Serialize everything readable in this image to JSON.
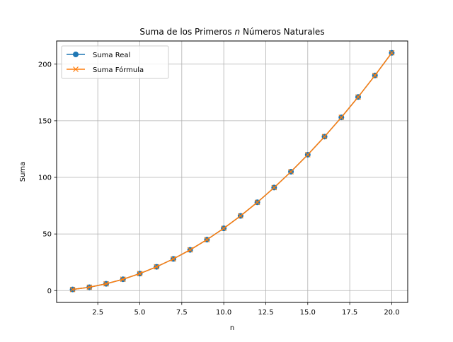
{
  "chart_data": {
    "type": "line",
    "title_parts": {
      "before": "Suma de los Primeros ",
      "var": "n",
      "after": " Números Naturales"
    },
    "xlabel": "n",
    "ylabel": "Suma",
    "xlim": [
      0.05,
      20.95
    ],
    "ylim": [
      -10.45,
      220.45
    ],
    "xticks": [
      2.5,
      5.0,
      7.5,
      10.0,
      12.5,
      15.0,
      17.5,
      20.0
    ],
    "xtick_labels": [
      "2.5",
      "5.0",
      "7.5",
      "10.0",
      "12.5",
      "15.0",
      "17.5",
      "20.0"
    ],
    "yticks": [
      0,
      50,
      100,
      150,
      200
    ],
    "ytick_labels": [
      "0",
      "50",
      "100",
      "150",
      "200"
    ],
    "grid": true,
    "legend_position": "top-left",
    "x": [
      1,
      2,
      3,
      4,
      5,
      6,
      7,
      8,
      9,
      10,
      11,
      12,
      13,
      14,
      15,
      16,
      17,
      18,
      19,
      20
    ],
    "series": [
      {
        "name": "Suma Real",
        "marker": "circle",
        "color": "#1f77b4",
        "values": [
          1,
          3,
          6,
          10,
          15,
          21,
          28,
          36,
          45,
          55,
          66,
          78,
          91,
          105,
          120,
          136,
          153,
          171,
          190,
          210
        ]
      },
      {
        "name": "Suma Fórmula",
        "marker": "x",
        "color": "#ff7f0e",
        "values": [
          1,
          3,
          6,
          10,
          15,
          21,
          28,
          36,
          45,
          55,
          66,
          78,
          91,
          105,
          120,
          136,
          153,
          171,
          190,
          210
        ]
      }
    ]
  }
}
